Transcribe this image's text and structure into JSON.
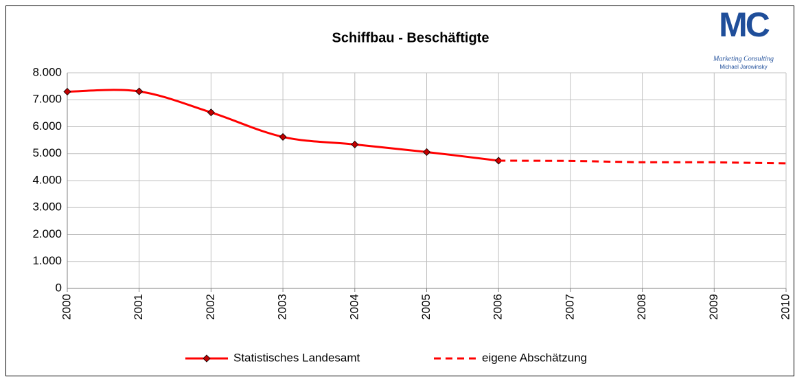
{
  "chart_data": {
    "type": "line",
    "title": "Schiffbau - Beschäftigte",
    "logo": {
      "mark": "MC",
      "line1": "Marketing Consulting",
      "line2": "Michael Jarowinsky"
    },
    "x": [
      2000,
      2001,
      2002,
      2003,
      2004,
      2005,
      2006,
      2007,
      2008,
      2009,
      2010
    ],
    "xlim": [
      2000,
      2010
    ],
    "xticks": [
      2000,
      2001,
      2002,
      2003,
      2004,
      2005,
      2006,
      2007,
      2008,
      2009,
      2010
    ],
    "ylim": [
      0,
      8000
    ],
    "yticks": [
      0,
      {
        "value": 1000,
        "label": "1.000"
      },
      {
        "value": 2000,
        "label": "2.000"
      },
      {
        "value": 3000,
        "label": "3.000"
      },
      {
        "value": 4000,
        "label": "4.000"
      },
      {
        "value": 5000,
        "label": "5.000"
      },
      {
        "value": 6000,
        "label": "6.000"
      },
      {
        "value": 7000,
        "label": "7.000"
      },
      {
        "value": 8000,
        "label": "8.000"
      }
    ],
    "grid": true,
    "legend": "bottom",
    "series": [
      {
        "name": "Statistisches Landesamt",
        "color": "#ff0000",
        "dashed": false,
        "marker": "diamond",
        "smooth": true,
        "values": [
          7300,
          7310,
          6530,
          5620,
          5340,
          5060,
          4740,
          null,
          null,
          null,
          null
        ]
      },
      {
        "name": "eigene Abschätzung",
        "color": "#ff0000",
        "dashed": true,
        "marker": "none",
        "smooth": false,
        "values": [
          null,
          null,
          null,
          null,
          null,
          null,
          4740,
          4730,
          4680,
          4680,
          4640
        ]
      }
    ]
  }
}
